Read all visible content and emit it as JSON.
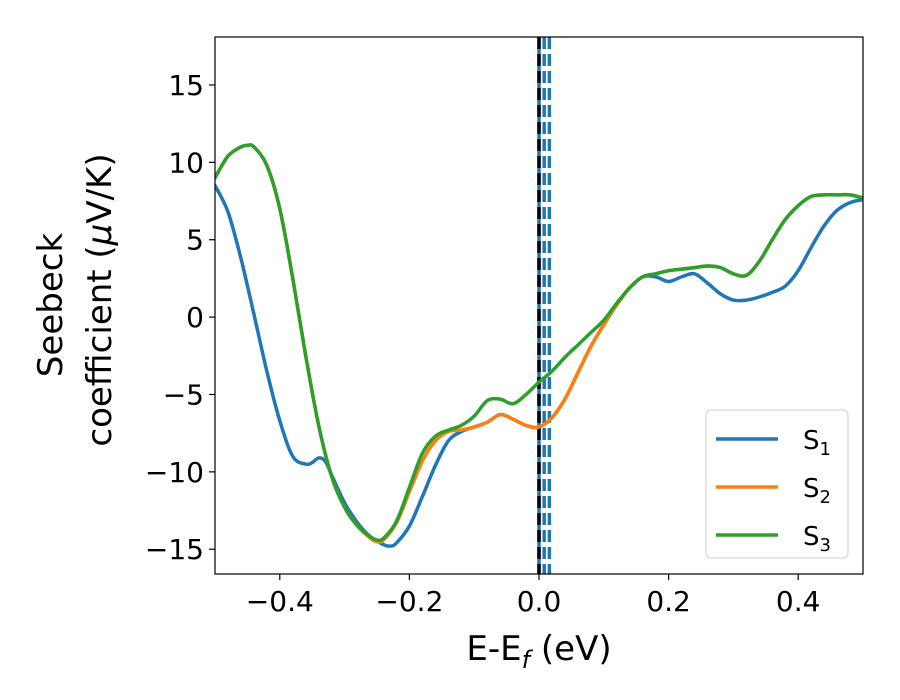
{
  "chart_data": {
    "type": "line",
    "xlabel_main": "E-E",
    "xlabel_sub": "f",
    "xlabel_unit": " (eV)",
    "ylabel_line1": "Seebeck",
    "ylabel_line2_pre": "coefficient  (",
    "ylabel_mu": "μ",
    "ylabel_line2_post": "V/K)",
    "xlim": [
      -0.5,
      0.5
    ],
    "ylim": [
      -16.6,
      18.1
    ],
    "xticks": [
      -0.4,
      -0.2,
      0.0,
      0.2,
      0.4
    ],
    "xtick_labels": [
      "−0.4",
      "−0.2",
      "0.0",
      "0.2",
      "0.4"
    ],
    "yticks": [
      -15,
      -10,
      -5,
      0,
      5,
      10,
      15
    ],
    "ytick_labels": [
      "−15",
      "−10",
      "−5",
      "0",
      "5",
      "10",
      "15"
    ],
    "grid": false,
    "legend_position": "bottom-right",
    "vlines": [
      {
        "x": 0.0,
        "color": "#1f77b4",
        "style": "solid"
      },
      {
        "x": 0.0,
        "color": "#000000",
        "style": "dashed"
      },
      {
        "x": 0.008,
        "color": "#1f77b4",
        "style": "dashed"
      },
      {
        "x": 0.016,
        "color": "#1f77b4",
        "style": "dashed"
      }
    ],
    "series": [
      {
        "name": "S",
        "sub": "1",
        "color": "#1f77b4",
        "x": [
          -0.5,
          -0.48,
          -0.46,
          -0.44,
          -0.42,
          -0.4,
          -0.38,
          -0.36,
          -0.35,
          -0.34,
          -0.33,
          -0.32,
          -0.3,
          -0.28,
          -0.26,
          -0.24,
          -0.23,
          -0.22,
          -0.2,
          -0.18,
          -0.16,
          -0.14,
          -0.12,
          -0.1,
          -0.08,
          -0.06,
          -0.04,
          -0.02,
          0.0,
          0.02,
          0.04,
          0.06,
          0.08,
          0.1,
          0.12,
          0.14,
          0.16,
          0.18,
          0.2,
          0.22,
          0.24,
          0.26,
          0.28,
          0.3,
          0.32,
          0.34,
          0.36,
          0.38,
          0.4,
          0.42,
          0.44,
          0.46,
          0.48,
          0.5
        ],
        "y": [
          8.5,
          6.8,
          3.8,
          0.2,
          -3.5,
          -6.7,
          -9.0,
          -9.5,
          -9.4,
          -9.1,
          -9.3,
          -10.2,
          -12.0,
          -13.3,
          -14.2,
          -14.7,
          -14.8,
          -14.6,
          -13.5,
          -11.6,
          -9.6,
          -8.0,
          -7.4,
          -7.1,
          -6.8,
          -6.3,
          -6.6,
          -7.0,
          -7.1,
          -6.5,
          -5.3,
          -3.6,
          -1.9,
          -0.5,
          0.8,
          1.9,
          2.6,
          2.6,
          2.3,
          2.6,
          2.8,
          2.2,
          1.5,
          1.1,
          1.1,
          1.3,
          1.6,
          2.0,
          3.0,
          4.5,
          5.9,
          6.9,
          7.4,
          7.6
        ]
      },
      {
        "name": "S",
        "sub": "2",
        "color": "#ff7f0e",
        "x": [
          -0.5,
          -0.48,
          -0.46,
          -0.45,
          -0.44,
          -0.42,
          -0.4,
          -0.38,
          -0.36,
          -0.34,
          -0.32,
          -0.3,
          -0.28,
          -0.26,
          -0.25,
          -0.24,
          -0.22,
          -0.2,
          -0.18,
          -0.16,
          -0.14,
          -0.12,
          -0.1,
          -0.08,
          -0.06,
          -0.04,
          -0.02,
          0.0,
          0.02,
          0.04,
          0.06,
          0.08,
          0.1,
          0.12,
          0.14,
          0.16,
          0.18,
          0.2,
          0.22,
          0.24,
          0.26,
          0.28,
          0.3,
          0.32,
          0.34,
          0.36,
          0.38,
          0.4,
          0.42,
          0.44,
          0.46,
          0.48,
          0.5
        ],
        "y": [
          9.0,
          10.4,
          11.0,
          11.1,
          11.0,
          9.8,
          7.0,
          2.5,
          -2.5,
          -7.0,
          -10.3,
          -12.3,
          -13.5,
          -14.3,
          -14.5,
          -14.4,
          -13.3,
          -11.3,
          -9.3,
          -8.0,
          -7.4,
          -7.3,
          -7.1,
          -6.8,
          -6.3,
          -6.6,
          -7.0,
          -7.1,
          -6.5,
          -5.3,
          -3.6,
          -1.9,
          -0.5,
          0.8,
          1.9,
          2.6,
          2.8,
          3.0,
          3.1,
          3.2,
          3.3,
          3.2,
          2.8,
          2.7,
          3.6,
          5.0,
          6.3,
          7.2,
          7.8,
          7.9,
          7.9,
          7.9,
          7.7
        ]
      },
      {
        "name": "S",
        "sub": "3",
        "color": "#2ca02c",
        "x": [
          -0.5,
          -0.48,
          -0.46,
          -0.45,
          -0.44,
          -0.42,
          -0.4,
          -0.38,
          -0.36,
          -0.34,
          -0.32,
          -0.3,
          -0.28,
          -0.26,
          -0.25,
          -0.24,
          -0.22,
          -0.2,
          -0.18,
          -0.16,
          -0.14,
          -0.12,
          -0.1,
          -0.08,
          -0.06,
          -0.04,
          -0.02,
          0.0,
          0.02,
          0.04,
          0.06,
          0.08,
          0.1,
          0.12,
          0.14,
          0.16,
          0.18,
          0.2,
          0.22,
          0.24,
          0.26,
          0.28,
          0.3,
          0.32,
          0.34,
          0.36,
          0.38,
          0.4,
          0.42,
          0.44,
          0.46,
          0.48,
          0.5
        ],
        "y": [
          9.0,
          10.4,
          11.0,
          11.1,
          11.0,
          9.8,
          7.0,
          2.5,
          -2.5,
          -7.0,
          -10.3,
          -12.3,
          -13.5,
          -14.2,
          -14.4,
          -14.3,
          -13.2,
          -11.0,
          -8.8,
          -7.7,
          -7.3,
          -7.0,
          -6.4,
          -5.4,
          -5.3,
          -5.6,
          -5.0,
          -4.2,
          -3.5,
          -2.6,
          -1.8,
          -1.0,
          -0.2,
          0.9,
          1.9,
          2.6,
          2.8,
          3.0,
          3.1,
          3.2,
          3.3,
          3.2,
          2.8,
          2.7,
          3.6,
          5.0,
          6.3,
          7.2,
          7.8,
          7.9,
          7.9,
          7.9,
          7.7
        ]
      }
    ]
  }
}
